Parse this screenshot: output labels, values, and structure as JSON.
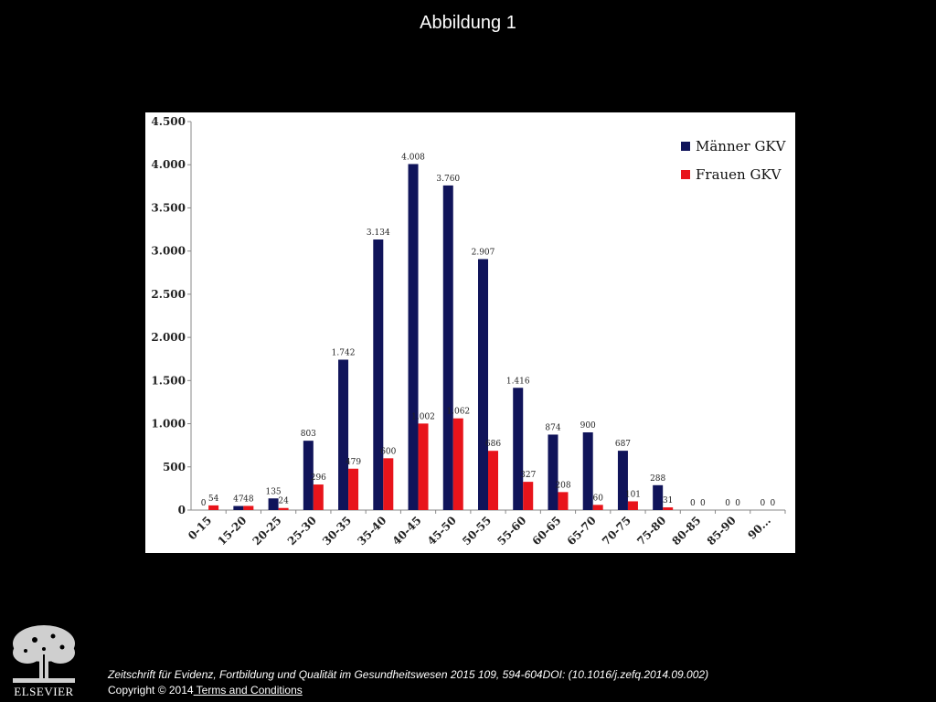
{
  "slide": {
    "title": "Abbildung 1",
    "citation": "Zeitschrift für Evidenz, Fortbildung und Qualität im Gesundheitswesen 2015 109, 594-604DOI: (10.1016/j.zefq.2014.09.002)",
    "copyright": "Copyright © 2014",
    "terms_link": " Terms and Conditions",
    "publisher_logo": "ELSEVIER"
  },
  "chart_data": {
    "type": "bar",
    "title": "",
    "xlabel": "",
    "ylabel": "",
    "ylim": [
      0,
      4500
    ],
    "yticks": [
      0,
      500,
      1000,
      1500,
      2000,
      2500,
      3000,
      3500,
      4000,
      4500
    ],
    "ytick_labels": [
      "0",
      "500",
      "1.000",
      "1.500",
      "2.000",
      "2.500",
      "3.000",
      "3.500",
      "4.000",
      "4.500"
    ],
    "grid": false,
    "legend_position": "top-right",
    "categories": [
      "0-15",
      "15-20",
      "20-25",
      "25-30",
      "30-35",
      "35-40",
      "40-45",
      "45-50",
      "50-55",
      "55-60",
      "60-65",
      "65-70",
      "70-75",
      "75-80",
      "80-85",
      "85-90",
      "90..."
    ],
    "series": [
      {
        "name": "Männer GKV",
        "color": "#10145a",
        "values": [
          0,
          47,
          135,
          803,
          1742,
          3134,
          4008,
          3760,
          2907,
          1416,
          874,
          900,
          687,
          288,
          0,
          0,
          0
        ],
        "labels": [
          "0",
          "47",
          "135",
          "803",
          "1.742",
          "3.134",
          "4.008",
          "3.760",
          "2.907",
          "1.416",
          "874",
          "900",
          "687",
          "288",
          "0",
          "0",
          "0"
        ]
      },
      {
        "name": "Frauen GKV",
        "color": "#e8141b",
        "values": [
          54,
          48,
          24,
          296,
          479,
          600,
          1002,
          1062,
          686,
          327,
          208,
          60,
          101,
          31,
          0,
          0,
          0
        ],
        "labels": [
          "54",
          "48",
          "24",
          "296",
          "479",
          "600",
          "1.002",
          "1.062",
          "686",
          "327",
          "208",
          "60",
          "101",
          "31",
          "0",
          "0",
          "0"
        ]
      }
    ]
  }
}
